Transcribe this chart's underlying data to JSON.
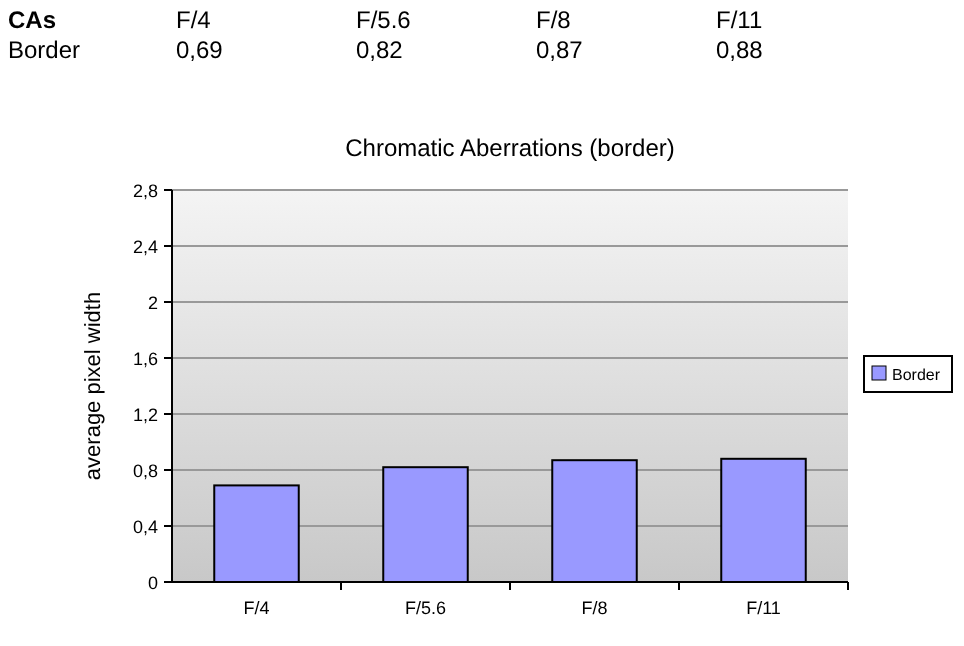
{
  "chart_data": {
    "type": "bar",
    "title": "Chromatic Aberrations (border)",
    "ylabel": "average pixel width",
    "annotations": [
      "CAs"
    ],
    "categories": [
      "F/4",
      "F/5.6",
      "F/8",
      "F/11"
    ],
    "series": [
      {
        "name": "Border",
        "color": "#9999ff",
        "values": [
          0.69,
          0.82,
          0.87,
          0.88
        ],
        "value_labels": [
          "0,69",
          "0,82",
          "0,87",
          "0,88"
        ]
      }
    ],
    "ylim": [
      0,
      2.8
    ],
    "yticks": [
      0,
      {
        "value": 0.4,
        "label": "0,4"
      },
      {
        "value": 0.8,
        "label": "0,8"
      },
      {
        "value": 1.2,
        "label": "1,2"
      },
      {
        "value": 1.6,
        "label": "1,6"
      },
      2,
      {
        "value": 2.4,
        "label": "2,4"
      },
      {
        "value": 2.8,
        "label": "2,8"
      }
    ],
    "grid": "y",
    "legend": "right"
  }
}
